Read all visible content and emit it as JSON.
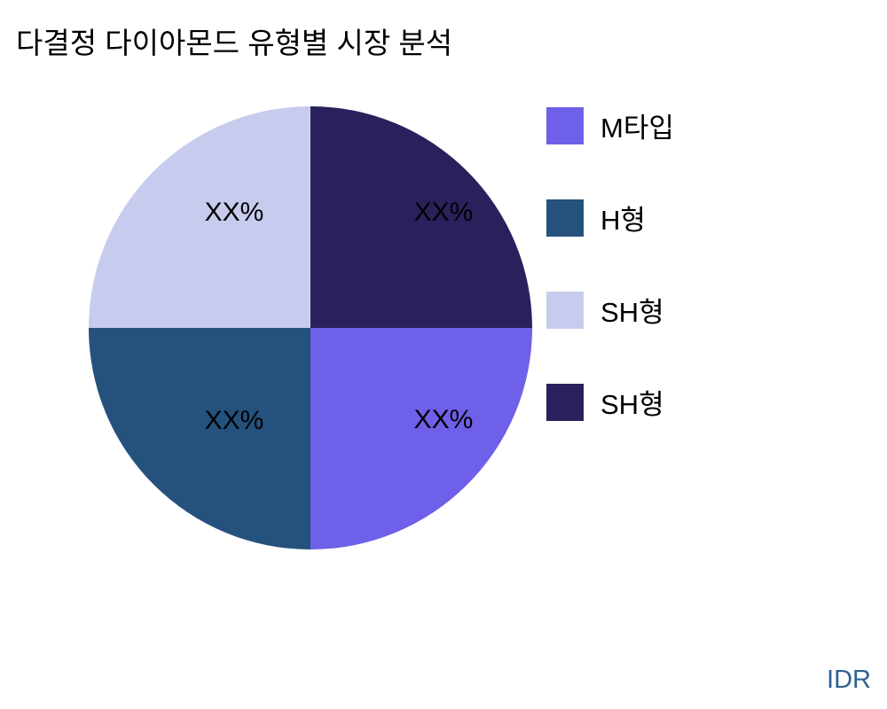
{
  "chart_data": {
    "type": "pie",
    "title": "다결정 다이아몬드 유형별 시장 분석",
    "legend_position": "right",
    "direction": "clockwise",
    "start_angle_deg": 0,
    "slices": [
      {
        "label": "SH형",
        "value": 25,
        "display_text": "XX%",
        "color": "#29215C",
        "position": "top-right"
      },
      {
        "label": "M타입",
        "value": 25,
        "display_text": "XX%",
        "color": "#6E60E8",
        "position": "bottom-right"
      },
      {
        "label": "H형",
        "value": 25,
        "display_text": "XX%",
        "color": "#25517D",
        "position": "bottom-left"
      },
      {
        "label": "SH형",
        "value": 25,
        "display_text": "XX%",
        "color": "#C7CBEE",
        "position": "top-left"
      }
    ],
    "legend": [
      {
        "label": "M타입",
        "color": "#6E60E8"
      },
      {
        "label": "H형",
        "color": "#25517D"
      },
      {
        "label": "SH형",
        "color": "#C7CBEE"
      },
      {
        "label": "SH형",
        "color": "#29215C"
      }
    ],
    "watermark": {
      "text": "IDR",
      "color": "#2F6092"
    }
  }
}
